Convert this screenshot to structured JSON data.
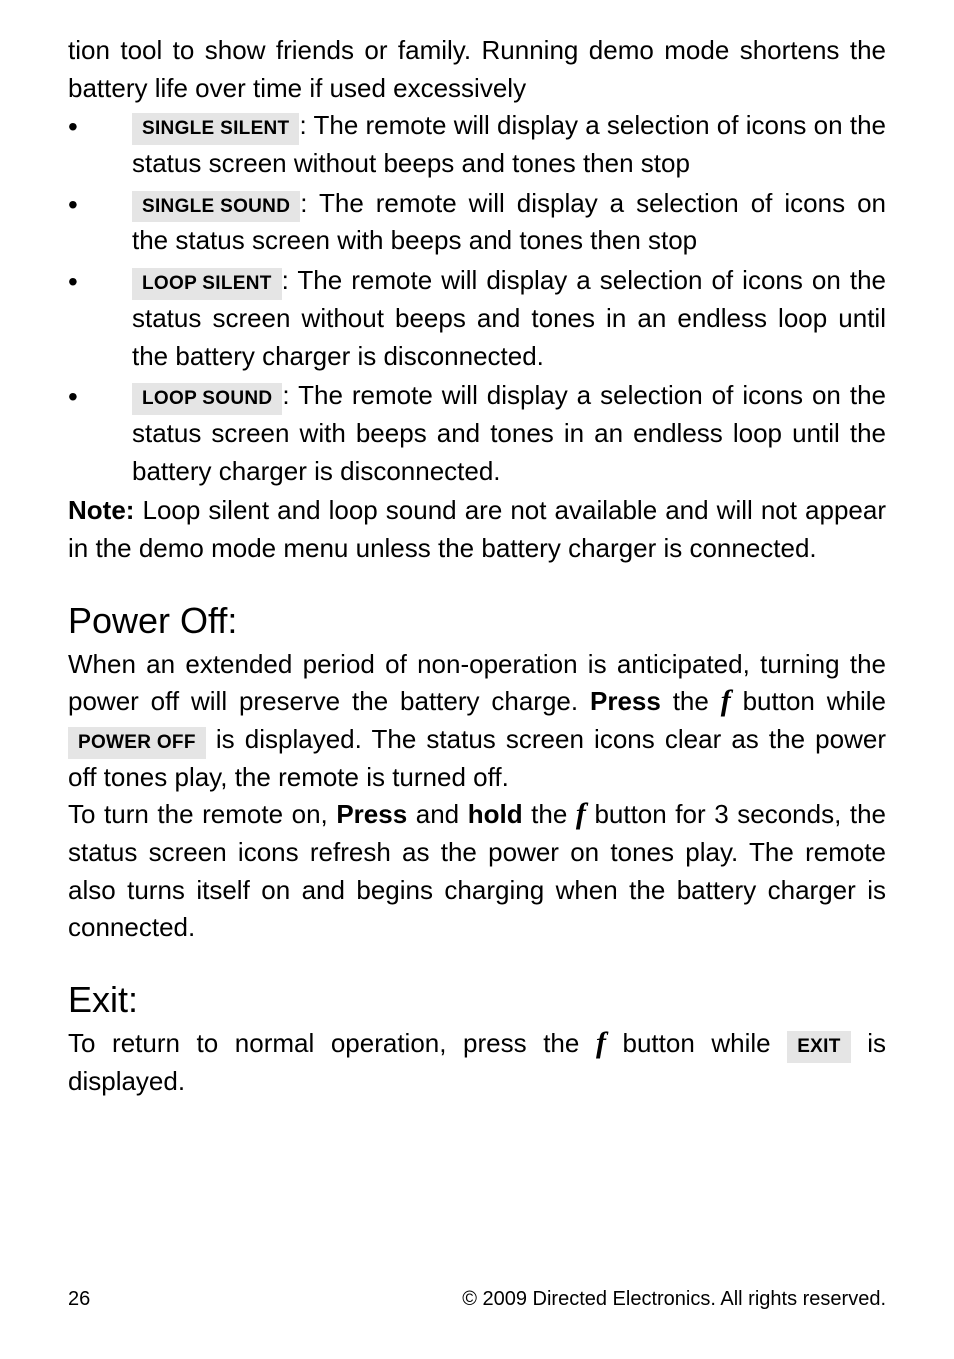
{
  "intro": "tion tool to show friends or family. Running demo mode shortens the battery life over time if used excessively",
  "bullets": [
    {
      "label": "SINGLE SILENT",
      "text": ": The remote will display a selection of icons on the status screen without beeps and tones then stop"
    },
    {
      "label": "SINGLE SOUND",
      "text": ": The remote will display a selection of icons on the status screen with beeps and tones then stop"
    },
    {
      "label": "LOOP SILENT",
      "text": ": The remote will display a selection of icons on the status screen without beeps and tones in an endless loop until the battery charger is disconnected."
    },
    {
      "label": "LOOP SOUND",
      "text": ": The remote will display a selection of icons on the status screen with beeps and tones in an endless loop until the battery charger is disconnected."
    }
  ],
  "note_label": "Note:",
  "note_text": " Loop silent and loop sound are not available and will not appear in the demo mode menu unless the battery charger is connected.",
  "poweroff": {
    "heading": "Power Off:",
    "p1a": "When an extended period of non-operation is anticipated, turning the power off will preserve the battery charge. ",
    "press1": "Press",
    "p1b": " the ",
    "p1c": " button while ",
    "label": "POWER OFF",
    "p1d": " is displayed. The status screen icons clear as the power off tones play, the remote is turned off.",
    "p2a": "To turn the remote on, ",
    "press2": "Press",
    "p2b": " and ",
    "hold": "hold",
    "p2c": " the ",
    "p2d": " button for 3 seconds, the status screen icons refresh as the power on tones play. The remote also turns itself on and begins charging when the battery charger is connected."
  },
  "exit": {
    "heading": "Exit:",
    "a": "To return to normal operation, press the ",
    "b": " button while ",
    "label": "EXIT",
    "c": " is displayed."
  },
  "fglyph": "f",
  "footer": {
    "page": "26",
    "copyright": "© 2009 Directed Electronics. All rights reserved."
  },
  "colors": {
    "label_bg": "#e5e5e5",
    "text": "#000000",
    "page_bg": "#ffffff"
  }
}
